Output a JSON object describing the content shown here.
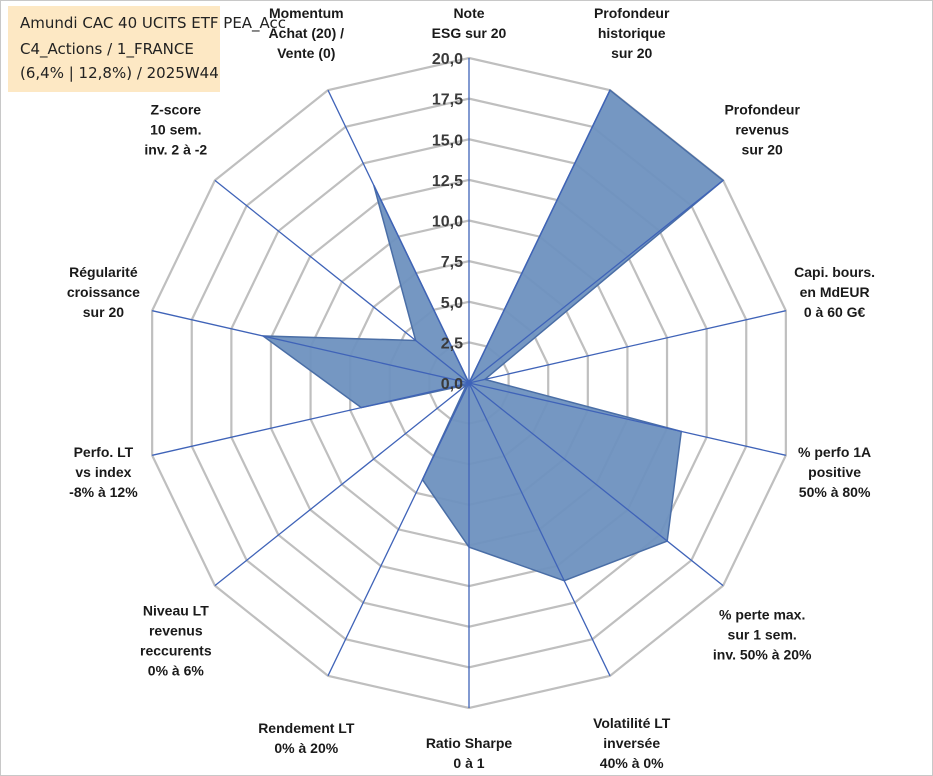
{
  "title": {
    "lines": [
      "Amundi CAC 40 UCITS ETF PEA_Acc",
      "C4_Actions / 1_FRANCE",
      "(6,4% | 12,8%) / 2025W44"
    ]
  },
  "colors": {
    "fill": "#6e91bf",
    "stroke": "#4a6ea6",
    "spoke": "#3f63b8",
    "grid": "#bfbfbf",
    "title_bg": "#fde8c4"
  },
  "chart_data": {
    "type": "radar",
    "rmin": 0,
    "rmax": 20,
    "grid_rings": 8,
    "ticks": [
      "0,0",
      "2,5",
      "5,0",
      "7,5",
      "10,0",
      "12,5",
      "15,0",
      "17,5",
      "20,0"
    ],
    "axes": [
      {
        "label": [
          "Note",
          "ESG sur 20"
        ],
        "value": 0
      },
      {
        "label": [
          "Profondeur",
          "historique",
          "sur 20"
        ],
        "value": 20
      },
      {
        "label": [
          "Profondeur",
          "revenus",
          "sur 20"
        ],
        "value": 20
      },
      {
        "label": [
          "Capi. bours.",
          "en MdEUR",
          "0 à 60 G€"
        ],
        "value": 1.0
      },
      {
        "label": [
          "% perfo 1A",
          "positive",
          "50% à 80%"
        ],
        "value": 13.4
      },
      {
        "label": [
          "% perte max.",
          "sur 1 sem.",
          "inv. 50% à 20%"
        ],
        "value": 15.6
      },
      {
        "label": [
          "Volatilité LT",
          "inversée",
          "40% à 0%"
        ],
        "value": 13.5
      },
      {
        "label": [
          "Ratio Sharpe",
          "0 à 1"
        ],
        "value": 10.1
      },
      {
        "label": [
          "Rendement LT",
          "0% à 20%"
        ],
        "value": 6.6
      },
      {
        "label": [
          "Niveau LT",
          "revenus",
          "reccurents",
          "0% à 6%"
        ],
        "value": 0.2
      },
      {
        "label": [
          "Perfo. LT",
          "vs index",
          "-8% à 12%"
        ],
        "value": 6.8
      },
      {
        "label": [
          "Régularité",
          "croissance",
          "sur 20"
        ],
        "value": 13.0
      },
      {
        "label": [
          "Z-score",
          "10 sem.",
          "inv. 2 à -2"
        ],
        "value": 4.2
      },
      {
        "label": [
          "Momentum",
          "Achat (20) /",
          "Vente (0)"
        ],
        "value": 13.5
      }
    ]
  }
}
